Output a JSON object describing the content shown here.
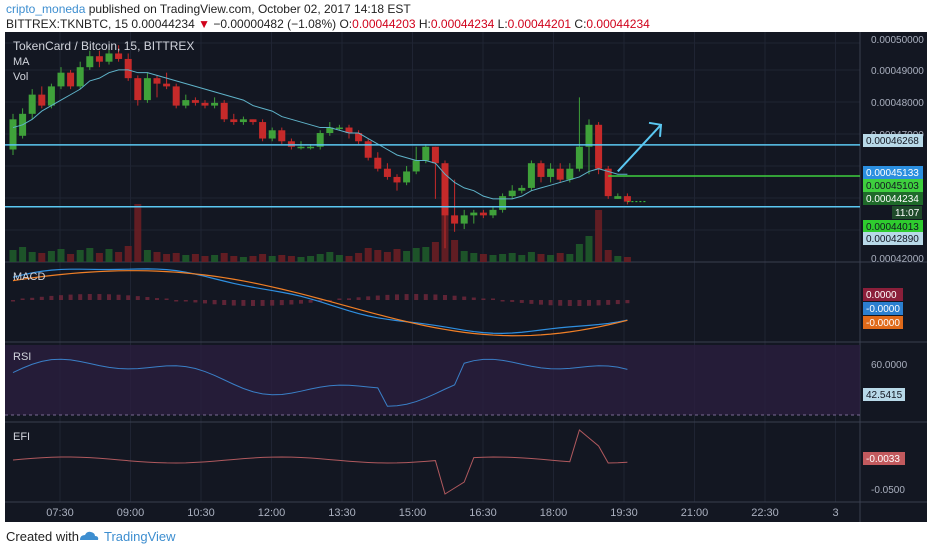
{
  "header": {
    "author": "cripto_moneda",
    "published": "published on TradingView.com, October 02, 2017 14:18 EST",
    "symbol": "BITTREX:TKNBTC, 15",
    "last": "0.00044234",
    "change": "−0.00000482 (−1.08%)",
    "o_label": "O:",
    "o": "0.00044203",
    "h_label": "H:",
    "h": "0.00044234",
    "l_label": "L:",
    "l": "0.00044201",
    "c_label": "C:",
    "c": "0.00044234"
  },
  "footer": {
    "created": "Created with",
    "brand": "TradingView"
  },
  "colors": {
    "bg": "#131722",
    "up": "#3fa13a",
    "down": "#c62a2a",
    "ma": "#5fb3c9",
    "macd": "#2f8fe0",
    "signal": "#f07f26",
    "hline": "#5bc8f2",
    "green_line": "#3ecf3e",
    "arrow": "#5bc8f2",
    "rsi": "#3a7fc7",
    "efi": "#b0595e"
  },
  "chart_data": {
    "type": "candlestick",
    "title": "TokenCard / Bitcoin, 15, BITTREX",
    "indicators": [
      "MA",
      "Vol"
    ],
    "ylim": [
      0.00042,
      0.000502
    ],
    "y_ticks": [
      "0.00050000",
      "0.00049000",
      "0.00048000",
      "0.00047000",
      "0.00042000"
    ],
    "x_ticks": [
      "07:30",
      "09:00",
      "10:30",
      "12:00",
      "13:30",
      "15:00",
      "16:30",
      "18:00",
      "19:30",
      "21:00",
      "22:30",
      "3"
    ],
    "candles": [
      [
        0.000461,
        0.000472,
        0.000474,
        0.000459
      ],
      [
        0.000466,
        0.000474,
        0.000476,
        0.000465
      ],
      [
        0.000474,
        0.000481,
        0.000483,
        0.000472
      ],
      [
        0.000481,
        0.000477,
        0.000484,
        0.000476
      ],
      [
        0.000477,
        0.000484,
        0.000485,
        0.000476
      ],
      [
        0.000484,
        0.000489,
        0.000491,
        0.000483
      ],
      [
        0.000489,
        0.000484,
        0.00049,
        0.000483
      ],
      [
        0.000484,
        0.000491,
        0.000493,
        0.000483
      ],
      [
        0.000491,
        0.000495,
        0.000497,
        0.00049
      ],
      [
        0.000495,
        0.000493,
        0.000497,
        0.000491
      ],
      [
        0.000493,
        0.000496,
        0.000498,
        0.000492
      ],
      [
        0.000496,
        0.000494,
        0.000499,
        0.000493
      ],
      [
        0.000494,
        0.000487,
        0.000496,
        0.000486
      ],
      [
        0.000487,
        0.000479,
        0.000488,
        0.000477
      ],
      [
        0.000479,
        0.000487,
        0.000489,
        0.000478
      ],
      [
        0.000487,
        0.000485,
        0.000488,
        0.00048
      ],
      [
        0.000485,
        0.000484,
        0.000489,
        0.000483
      ],
      [
        0.000484,
        0.000477,
        0.000485,
        0.000476
      ],
      [
        0.000477,
        0.000479,
        0.000481,
        0.000476
      ],
      [
        0.000479,
        0.000478,
        0.00048,
        0.000477
      ],
      [
        0.000478,
        0.000477,
        0.000479,
        0.000476
      ],
      [
        0.000477,
        0.000478,
        0.00048,
        0.000476
      ],
      [
        0.000478,
        0.000472,
        0.000479,
        0.000471
      ],
      [
        0.000472,
        0.000471,
        0.000474,
        0.00047
      ],
      [
        0.000471,
        0.000472,
        0.000473,
        0.00047
      ],
      [
        0.000472,
        0.000471,
        0.000472,
        0.00047
      ],
      [
        0.000471,
        0.000465,
        0.000472,
        0.000464
      ],
      [
        0.000465,
        0.000468,
        0.000469,
        0.000464
      ],
      [
        0.000468,
        0.000464,
        0.000469,
        0.000463
      ],
      [
        0.000464,
        0.000462,
        0.000465,
        0.000461
      ],
      [
        0.000462,
        0.000462,
        0.000464,
        0.000461
      ],
      [
        0.000462,
        0.000462,
        0.000463,
        0.000461
      ],
      [
        0.000462,
        0.000467,
        0.000468,
        0.000461
      ],
      [
        0.000467,
        0.000469,
        0.000471,
        0.000466
      ],
      [
        0.000469,
        0.000469,
        0.00047,
        0.000468
      ],
      [
        0.000469,
        0.000467,
        0.00047,
        0.000465
      ],
      [
        0.000467,
        0.000464,
        0.000468,
        0.000463
      ],
      [
        0.000464,
        0.000458,
        0.000465,
        0.000457
      ],
      [
        0.000458,
        0.000454,
        0.00046,
        0.000453
      ],
      [
        0.000454,
        0.000451,
        0.000456,
        0.00045
      ],
      [
        0.000451,
        0.000449,
        0.000452,
        0.000446
      ],
      [
        0.000449,
        0.000453,
        0.000455,
        0.000448
      ],
      [
        0.000453,
        0.000457,
        0.000462,
        0.000452
      ],
      [
        0.000457,
        0.000462,
        0.000463,
        0.000456
      ],
      [
        0.000462,
        0.000456,
        0.000462,
        0.000443
      ],
      [
        0.000456,
        0.000437,
        0.000457,
        0.000425
      ],
      [
        0.000437,
        0.000434,
        0.00045,
        0.000431
      ],
      [
        0.000434,
        0.000437,
        0.000439,
        0.000432
      ],
      [
        0.000437,
        0.000438,
        0.000439,
        0.000434
      ],
      [
        0.000438,
        0.000437,
        0.000439,
        0.000436
      ],
      [
        0.000437,
        0.000439,
        0.00044,
        0.000436
      ],
      [
        0.000439,
        0.000444,
        0.000445,
        0.000438
      ],
      [
        0.000444,
        0.000446,
        0.000448,
        0.000443
      ],
      [
        0.000446,
        0.000447,
        0.000448,
        0.000445
      ],
      [
        0.000447,
        0.000456,
        0.000457,
        0.000446
      ],
      [
        0.000456,
        0.000451,
        0.000457,
        0.000449
      ],
      [
        0.000451,
        0.000454,
        0.000456,
        0.000449
      ],
      [
        0.000454,
        0.00045,
        0.000456,
        0.000449
      ],
      [
        0.00045,
        0.000454,
        0.000456,
        0.000449
      ],
      [
        0.000454,
        0.000462,
        0.00048,
        0.000453
      ],
      [
        0.000462,
        0.00047,
        0.000472,
        0.000452
      ],
      [
        0.00047,
        0.000454,
        0.000471,
        0.000452
      ],
      [
        0.000454,
        0.000444,
        0.000455,
        0.000443
      ],
      [
        0.000443,
        0.000444,
        0.000445,
        0.000443
      ],
      [
        0.000444,
        0.000442,
        0.000445,
        0.000441
      ]
    ],
    "ma": [
      0.000469,
      0.00047,
      0.000472,
      0.000475,
      0.000477,
      0.000479,
      0.000481,
      0.000483,
      0.000486,
      0.000487,
      0.000489,
      0.00049,
      0.00049,
      0.000489,
      0.000489,
      0.000488,
      0.000487,
      0.000486,
      0.000485,
      0.000484,
      0.000483,
      0.000482,
      0.000481,
      0.00048,
      0.000479,
      0.000477,
      0.000476,
      0.000475,
      0.000473,
      0.000472,
      0.000471,
      0.00047,
      0.000469,
      0.000469,
      0.000468,
      0.000467,
      0.000467,
      0.000465,
      0.000463,
      0.000461,
      0.000459,
      0.000458,
      0.000457,
      0.000457,
      0.000456,
      0.000452,
      0.000449,
      0.000447,
      0.000446,
      0.000444,
      0.000443,
      0.000443,
      0.000443,
      0.000444,
      0.000446,
      0.000447,
      0.000448,
      0.000449,
      0.00045,
      0.000451,
      0.000453,
      0.000454,
      0.000453,
      0.000452,
      0.000452
    ],
    "volume": [
      12,
      15,
      10,
      9,
      11,
      13,
      8,
      12,
      14,
      9,
      13,
      10,
      16,
      24,
      12,
      10,
      8,
      9,
      7,
      8,
      6,
      7,
      9,
      6,
      5,
      6,
      8,
      6,
      7,
      6,
      5,
      6,
      8,
      10,
      7,
      6,
      9,
      14,
      12,
      10,
      13,
      11,
      14,
      15,
      20,
      34,
      22,
      11,
      9,
      8,
      7,
      8,
      9,
      7,
      10,
      8,
      7,
      9,
      8,
      18,
      26,
      16,
      12,
      6,
      5
    ],
    "volume_spikes": {
      "13": 58,
      "45": 60,
      "61": 52
    },
    "price_labels": [
      "0.00046268",
      "0.00045133",
      "0.00045103",
      "0.00044234",
      "11:07",
      "0.00044013",
      "0.00042890"
    ],
    "lines": {
      "upper": 0.00046268,
      "green": 0.00045133,
      "lower": 0.00044013
    },
    "macd": {
      "label": "MACD",
      "values_labels": [
        "0.0000",
        "-0.0000",
        "-0.0000"
      ]
    },
    "rsi": {
      "label": "RSI",
      "tick": "60.0000",
      "value_label": "42.5415"
    },
    "efi": {
      "label": "EFI",
      "tick": "-0.0500",
      "value_label": "-0.0033"
    }
  }
}
